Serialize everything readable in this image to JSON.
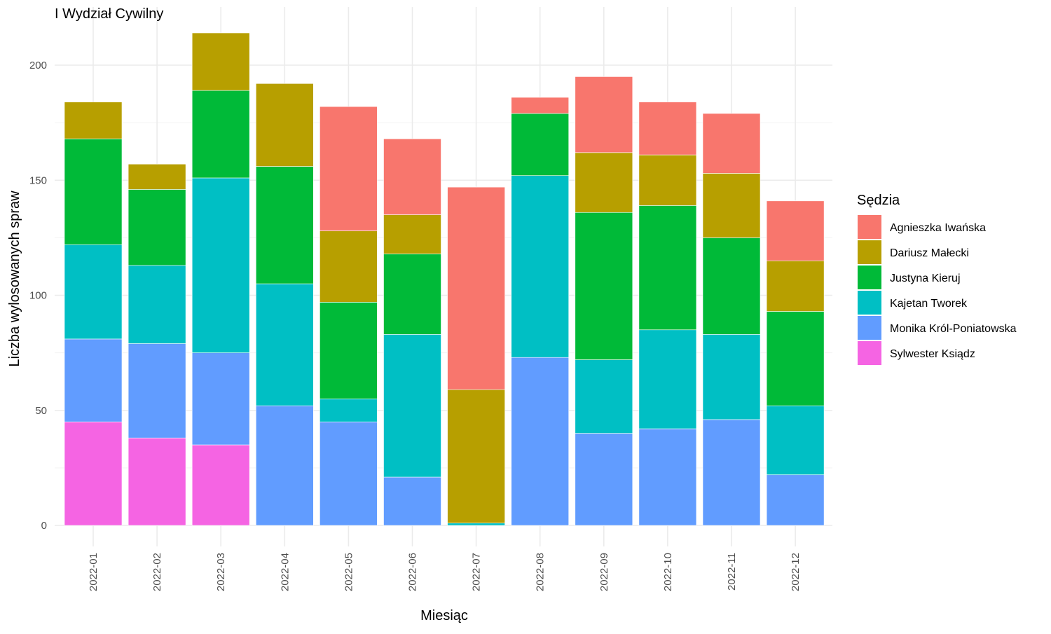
{
  "chart_data": {
    "type": "bar",
    "stacked": true,
    "title": "I Wydział Cywilny",
    "xlabel": "Miesiąc",
    "ylabel": "Liczba wylosowanych spraw",
    "ylim": [
      0,
      220
    ],
    "yticks": [
      0,
      50,
      100,
      150,
      200
    ],
    "grid": true,
    "legend_title": "Sędzia",
    "legend_position": "right",
    "categories": [
      "2022-01",
      "2022-02",
      "2022-03",
      "2022-04",
      "2022-05",
      "2022-06",
      "2022-07",
      "2022-08",
      "2022-09",
      "2022-10",
      "2022-11",
      "2022-12"
    ],
    "series": [
      {
        "name": "Sylwester Ksiądz",
        "color": "#F564E3",
        "values": [
          45,
          38,
          35,
          0,
          0,
          0,
          0,
          0,
          0,
          0,
          0,
          0
        ]
      },
      {
        "name": "Monika Król-Poniatowska",
        "color": "#619CFF",
        "values": [
          36,
          41,
          40,
          52,
          45,
          21,
          0,
          73,
          40,
          42,
          46,
          22
        ]
      },
      {
        "name": "Kajetan Tworek",
        "color": "#00BFC4",
        "values": [
          41,
          34,
          76,
          53,
          10,
          62,
          1,
          79,
          32,
          43,
          37,
          30
        ]
      },
      {
        "name": "Justyna Kieruj",
        "color": "#00BA38",
        "values": [
          46,
          33,
          38,
          51,
          42,
          35,
          0,
          27,
          64,
          54,
          42,
          41
        ]
      },
      {
        "name": "Dariusz Małecki",
        "color": "#B79F00",
        "values": [
          16,
          11,
          25,
          36,
          31,
          17,
          58,
          0,
          26,
          22,
          28,
          22
        ]
      },
      {
        "name": "Agnieszka Iwańska",
        "color": "#F8766D",
        "values": [
          0,
          0,
          0,
          0,
          54,
          33,
          88,
          7,
          33,
          23,
          26,
          26
        ]
      }
    ],
    "legend_order": [
      "Agnieszka Iwańska",
      "Dariusz Małecki",
      "Justyna Kieruj",
      "Kajetan Tworek",
      "Monika Król-Poniatowska",
      "Sylwester Ksiądz"
    ]
  }
}
